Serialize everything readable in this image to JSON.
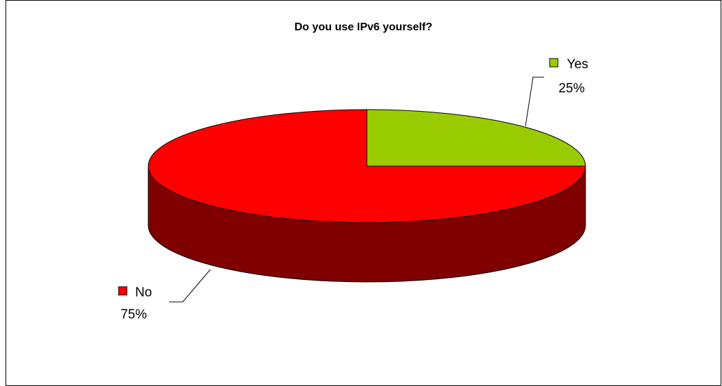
{
  "chart_data": {
    "type": "pie",
    "style": "3d",
    "title": "Do you use IPv6 yourself?",
    "slices": [
      {
        "label": "Yes",
        "value": 25,
        "value_label": "25%",
        "color": "#99CC00",
        "side_color": "#4d6600"
      },
      {
        "label": "No",
        "value": 75,
        "value_label": "75%",
        "color": "#FF0000",
        "side_color": "#800000"
      }
    ],
    "legend": "none",
    "data_labels": "outside with leader lines"
  }
}
